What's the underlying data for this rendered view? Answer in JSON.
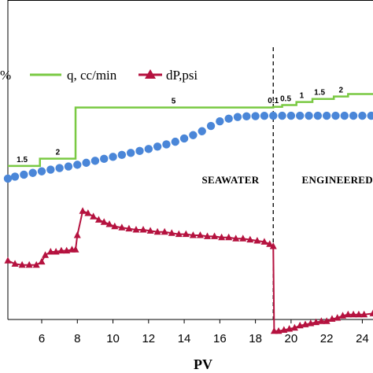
{
  "chart_data": {
    "type": "line",
    "xlabel": "PV",
    "x_ticks": [
      "6",
      "8",
      "10",
      "12",
      "14",
      "16",
      "18",
      "20",
      "22",
      "24"
    ],
    "xlim": [
      4.1,
      24.6
    ],
    "legend": {
      "partial_label": "%",
      "q_label": "q, cc/min",
      "dp_label": "dP,psi"
    },
    "region_labels": [
      {
        "text": "SEAWATER",
        "x": 16.6
      },
      {
        "text": "ENGINEERED",
        "x": 22.6
      }
    ],
    "divider_x": 19.0,
    "colors": {
      "q": "#7ac943",
      "dp": "#b5123f",
      "recovery": "#4a86d8",
      "divider": "#000000"
    },
    "series": [
      {
        "name": "q, cc/min",
        "kind": "step",
        "axis_range": [
          0,
          6.2
        ],
        "points": [
          [
            4.1,
            0.2
          ],
          [
            5.9,
            0.2
          ],
          [
            5.9,
            0.8
          ],
          [
            7.9,
            0.8
          ],
          [
            7.9,
            5
          ],
          [
            19.0,
            5
          ],
          [
            19.0,
            5.05
          ],
          [
            19.5,
            5.05
          ],
          [
            19.5,
            5.2
          ],
          [
            20.3,
            5.2
          ],
          [
            20.3,
            5.45
          ],
          [
            21.2,
            5.45
          ],
          [
            21.2,
            5.7
          ],
          [
            22.4,
            5.7
          ],
          [
            22.4,
            5.9
          ],
          [
            23.2,
            5.9
          ],
          [
            23.2,
            6.1
          ],
          [
            24.6,
            6.1
          ]
        ],
        "rate_labels": [
          {
            "text": "1.5",
            "x": 4.9,
            "y": 0.2
          },
          {
            "text": "2",
            "x": 6.9,
            "y": 0.8
          },
          {
            "text": "5",
            "x": 13.4,
            "y": 5
          },
          {
            "text": "0.1",
            "x": 19.0,
            "y": 5.05
          },
          {
            "text": "0.5",
            "x": 19.7,
            "y": 5.2
          },
          {
            "text": "1",
            "x": 20.6,
            "y": 5.45
          },
          {
            "text": "1.5",
            "x": 21.6,
            "y": 5.7
          },
          {
            "text": "2",
            "x": 22.8,
            "y": 5.9
          }
        ]
      },
      {
        "name": "recovery",
        "kind": "markers",
        "axis_range": [
          0,
          100
        ],
        "x": [
          4.1,
          4.5,
          5.0,
          5.5,
          6.0,
          6.5,
          7.0,
          7.5,
          8.0,
          8.5,
          9.0,
          9.5,
          10.0,
          10.5,
          11.0,
          11.5,
          12.0,
          12.5,
          13.0,
          13.5,
          14.0,
          14.5,
          15.0,
          15.5,
          16.0,
          16.5,
          17.0,
          17.5,
          18.0,
          18.5,
          19.0,
          19.5,
          20.0,
          20.5,
          21.0,
          21.5,
          22.0,
          22.5,
          23.0,
          23.5,
          24.0,
          24.5
        ],
        "y": [
          12,
          13.5,
          15,
          16.3,
          17.5,
          18.8,
          20,
          21.2,
          22.5,
          24,
          25.5,
          27,
          28.5,
          30,
          31.5,
          33,
          34.5,
          36.3,
          38,
          40,
          42.5,
          45,
          48,
          52,
          55.5,
          57.5,
          58.8,
          59.3,
          59.5,
          59.7,
          59.8,
          59.8,
          59.8,
          59.8,
          59.8,
          59.8,
          59.8,
          59.8,
          59.8,
          59.8,
          59.8,
          59.8
        ]
      },
      {
        "name": "dP,psi",
        "kind": "line-triangles",
        "axis_range": [
          0,
          200
        ],
        "x": [
          4.1,
          4.5,
          4.9,
          5.3,
          5.7,
          6.0,
          6.2,
          6.5,
          6.8,
          7.1,
          7.4,
          7.7,
          7.9,
          8.0,
          8.3,
          8.6,
          8.9,
          9.2,
          9.5,
          9.8,
          10.1,
          10.5,
          10.9,
          11.3,
          11.7,
          12.1,
          12.5,
          12.9,
          13.3,
          13.7,
          14.1,
          14.5,
          14.9,
          15.3,
          15.7,
          16.1,
          16.5,
          16.9,
          17.3,
          17.7,
          18.1,
          18.5,
          18.8,
          19.0,
          19.05,
          19.3,
          19.6,
          19.9,
          20.2,
          20.5,
          20.8,
          21.1,
          21.4,
          21.7,
          22.0,
          22.3,
          22.6,
          22.9,
          23.2,
          23.5,
          23.8,
          24.1,
          24.6
        ],
        "y": [
          67,
          64,
          63,
          63,
          63,
          66,
          72,
          75,
          75,
          76,
          76,
          77,
          77,
          90,
          112,
          110,
          107,
          104,
          102,
          100,
          98,
          97,
          96,
          95,
          95,
          94,
          93,
          93,
          92,
          91,
          91,
          90,
          90,
          89,
          89,
          88,
          88,
          87,
          87,
          86,
          85,
          84,
          82,
          80,
          3,
          3,
          4,
          5,
          6,
          8,
          9,
          10,
          11,
          12,
          12,
          14,
          15,
          17,
          18,
          18,
          18,
          18,
          19
        ]
      }
    ]
  }
}
